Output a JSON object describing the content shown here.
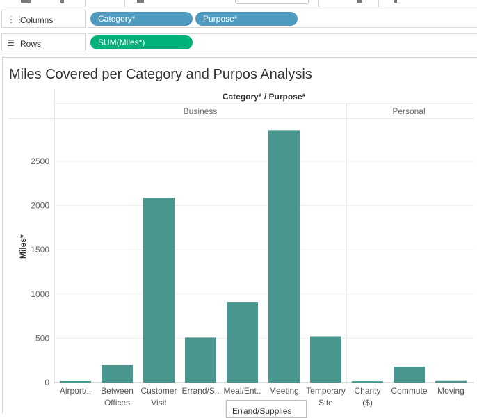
{
  "shelves": {
    "columns": {
      "label": "Columns",
      "icon": "columns-icon",
      "pills": [
        "Category*",
        "Purpose*"
      ]
    },
    "rows": {
      "label": "Rows",
      "icon": "rows-icon",
      "pills": [
        "SUM(Miles*)"
      ]
    }
  },
  "colors": {
    "bar": "#4a9790",
    "dimension_pill": "#4f9bbf",
    "measure_pill": "#00b17a"
  },
  "tooltip": {
    "text": "Errand/Supplies"
  },
  "chart_data": {
    "type": "bar",
    "title": "Miles Covered per Category and Purpos Analysis",
    "header": "Category* / Purpose*",
    "ylabel": "Miles*",
    "ylim": [
      0,
      2900
    ],
    "yticks": [
      0,
      500,
      1000,
      1500,
      2000,
      2500
    ],
    "grid": true,
    "groups": [
      {
        "name": "Business",
        "categories": [
          {
            "label": "Airport/..",
            "value": 16
          },
          {
            "label": "Between Offices",
            "value": 197
          },
          {
            "label": "Customer Visit",
            "value": 2089
          },
          {
            "label": "Errand/S..",
            "value": 508
          },
          {
            "label": "Meal/Ent..",
            "value": 911
          },
          {
            "label": "Meeting",
            "value": 2851
          },
          {
            "label": "Temporary Site",
            "value": 523
          }
        ]
      },
      {
        "name": "Personal",
        "categories": [
          {
            "label": "Charity ($)",
            "value": 15
          },
          {
            "label": "Commute",
            "value": 180
          },
          {
            "label": "Moving",
            "value": 18
          }
        ]
      }
    ]
  }
}
